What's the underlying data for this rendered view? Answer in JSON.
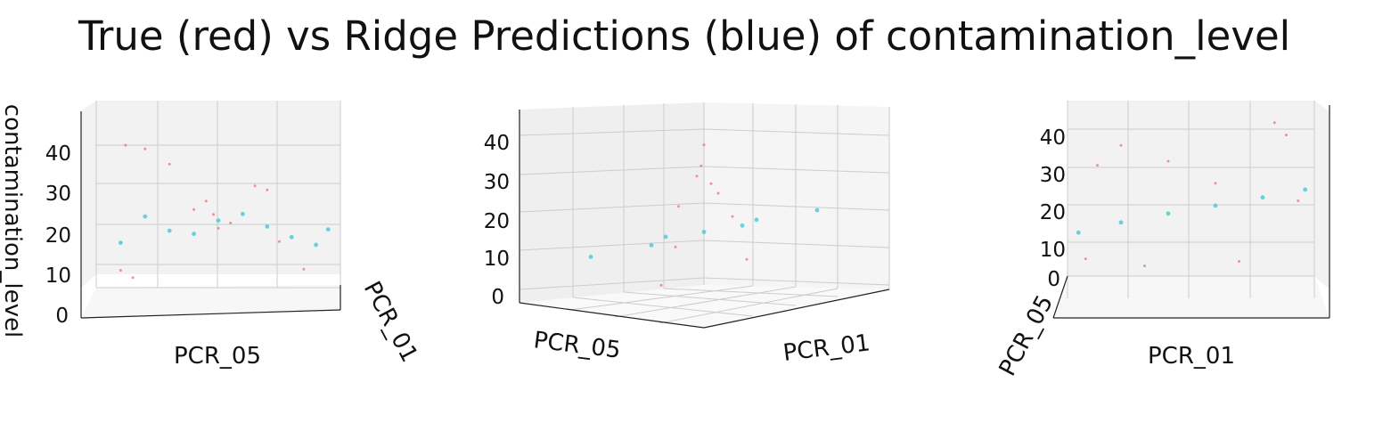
{
  "figure": {
    "title": "True (red) vs Ridge Predictions (blue) of contamination_level"
  },
  "colors": {
    "true": "#e8746a",
    "pred": "#4ecbd8",
    "pane_back": "#eeeeee",
    "pane_side": "#f6f6f6",
    "pane_floor": "#f8f8f8",
    "grid": "#c8c8c8"
  },
  "chart_data": [
    {
      "type": "scatter",
      "view": "front view toward PCR_05 axis",
      "xlabel": "PCR_05",
      "ylabel": "PCR_01",
      "zlabel": "contamination_level",
      "zticks": [
        "0",
        "10",
        "20",
        "30",
        "40"
      ],
      "series": [
        {
          "color": "red",
          "points": [
            [
              0.5,
              0.45,
              20.5
            ],
            [
              0.4,
              0.5,
              25.2
            ],
            [
              0.45,
              0.5,
              27.3
            ],
            [
              0.48,
              0.5,
              24.0
            ],
            [
              0.7,
              0.55,
              30.1
            ],
            [
              0.65,
              0.45,
              31.0
            ],
            [
              0.2,
              0.5,
              40.2
            ],
            [
              0.12,
              0.5,
              41.1
            ],
            [
              0.3,
              0.5,
              36.4
            ],
            [
              0.1,
              0.5,
              10.2
            ],
            [
              0.15,
              0.5,
              8.4
            ],
            [
              0.85,
              0.5,
              10.5
            ],
            [
              0.75,
              0.5,
              17.3
            ],
            [
              0.55,
              0.5,
              21.9
            ]
          ]
        },
        {
          "color": "blue",
          "points": [
            [
              0.1,
              0.5,
              17.0
            ],
            [
              0.3,
              0.5,
              20.0
            ],
            [
              0.5,
              0.5,
              22.5
            ],
            [
              0.7,
              0.5,
              21.0
            ],
            [
              0.9,
              0.5,
              16.5
            ],
            [
              0.2,
              0.5,
              23.5
            ],
            [
              0.4,
              0.5,
              19.2
            ],
            [
              0.6,
              0.5,
              24.1
            ],
            [
              0.8,
              0.5,
              18.4
            ],
            [
              0.95,
              0.5,
              20.3
            ]
          ]
        }
      ]
    },
    {
      "type": "scatter",
      "view": "oblique view",
      "xlabel": "PCR_05",
      "ylabel": "PCR_01",
      "zlabel": "",
      "zticks": [
        "0",
        "10",
        "20",
        "30",
        "40"
      ],
      "series": [
        {
          "color": "red",
          "points": [
            [
              0.5,
              0.5,
              40.5
            ],
            [
              0.48,
              0.52,
              35.2
            ],
            [
              0.55,
              0.45,
              30.0
            ],
            [
              0.35,
              0.6,
              25.4
            ],
            [
              0.6,
              0.4,
              27.1
            ],
            [
              0.7,
              0.3,
              20.2
            ],
            [
              0.3,
              0.7,
              15.5
            ],
            [
              0.2,
              0.8,
              6.3
            ],
            [
              0.8,
              0.2,
              8.2
            ],
            [
              0.45,
              0.55,
              32.8
            ]
          ]
        },
        {
          "color": "blue",
          "points": [
            [
              0.1,
              0.2,
              10.5
            ],
            [
              0.3,
              0.4,
              14.2
            ],
            [
              0.5,
              0.5,
              17.8
            ],
            [
              0.7,
              0.6,
              21.1
            ],
            [
              0.9,
              0.8,
              24.3
            ],
            [
              0.4,
              0.3,
              15.6
            ],
            [
              0.6,
              0.7,
              20.4
            ]
          ]
        }
      ]
    },
    {
      "type": "scatter",
      "view": "side view toward PCR_01 axis",
      "xlabel": "PCR_01",
      "ylabel": "PCR_05",
      "zlabel": "",
      "zticks": [
        "0",
        "10",
        "20",
        "30",
        "40"
      ],
      "series": [
        {
          "color": "red",
          "points": [
            [
              0.1,
              0.5,
              30.1
            ],
            [
              0.2,
              0.5,
              35.4
            ],
            [
              0.4,
              0.5,
              31.2
            ],
            [
              0.6,
              0.5,
              25.3
            ],
            [
              0.85,
              0.5,
              41.5
            ],
            [
              0.9,
              0.5,
              38.2
            ],
            [
              0.05,
              0.5,
              5.1
            ],
            [
              0.3,
              0.5,
              3.2
            ],
            [
              0.7,
              0.5,
              4.4
            ],
            [
              0.95,
              0.5,
              20.6
            ]
          ]
        },
        {
          "color": "blue",
          "points": [
            [
              0.02,
              0.5,
              12.1
            ],
            [
              0.2,
              0.5,
              14.8
            ],
            [
              0.4,
              0.5,
              17.2
            ],
            [
              0.6,
              0.5,
              19.3
            ],
            [
              0.8,
              0.5,
              21.5
            ],
            [
              0.98,
              0.5,
              23.6
            ]
          ]
        }
      ]
    }
  ]
}
